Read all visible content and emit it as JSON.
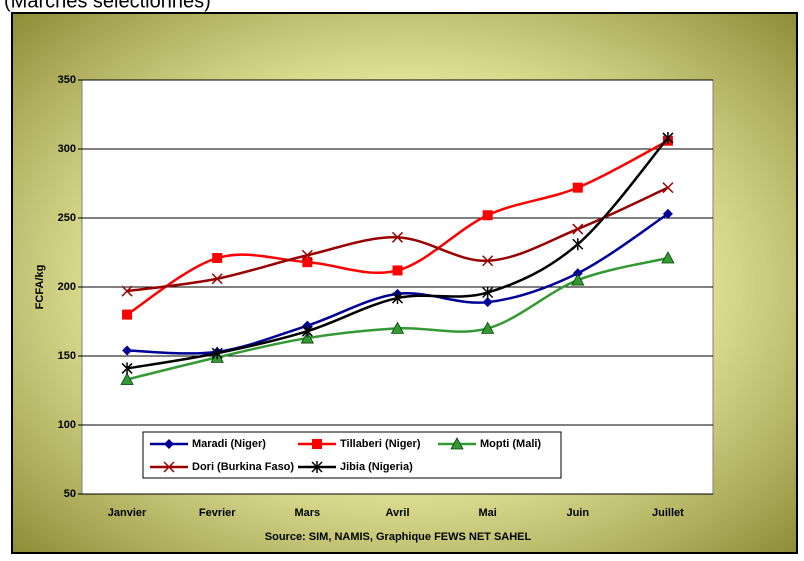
{
  "chart_data": {
    "type": "line",
    "subtitle": "(Marchés sélectionnés)",
    "y_label": "FCFA/kg",
    "x_label": "Source: SIM, NAMIS, Graphique FEWS NET SAHEL",
    "categories": [
      "Janvier",
      "Fevrier",
      "Mars",
      "Avril",
      "Mai",
      "Juin",
      "Juillet"
    ],
    "series": [
      {
        "name": "Maradi (Niger)",
        "color": "#000099",
        "marker": "diamond",
        "values": [
          154,
          153,
          172,
          195,
          189,
          210,
          253
        ]
      },
      {
        "name": "Tillaberi (Niger)",
        "color": "#ff0000",
        "marker": "square",
        "values": [
          180,
          221,
          218,
          212,
          252,
          272,
          306
        ]
      },
      {
        "name": "Mopti (Mali)",
        "color": "#339933",
        "marker": "triangle",
        "values": [
          133,
          149,
          163,
          170,
          170,
          205,
          221
        ]
      },
      {
        "name": "Dori (Burkina Faso)",
        "color": "#990000",
        "marker": "x",
        "values": [
          197,
          206,
          223,
          236,
          219,
          242,
          272
        ]
      },
      {
        "name": "Jibia (Nigeria)",
        "color": "#000000",
        "marker": "star",
        "values": [
          141,
          152,
          168,
          192,
          196,
          231,
          308
        ]
      }
    ],
    "ylim": [
      50,
      350
    ],
    "yticks": [
      50,
      100,
      150,
      200,
      250,
      300,
      350
    ],
    "grid": true,
    "smooth": true
  }
}
